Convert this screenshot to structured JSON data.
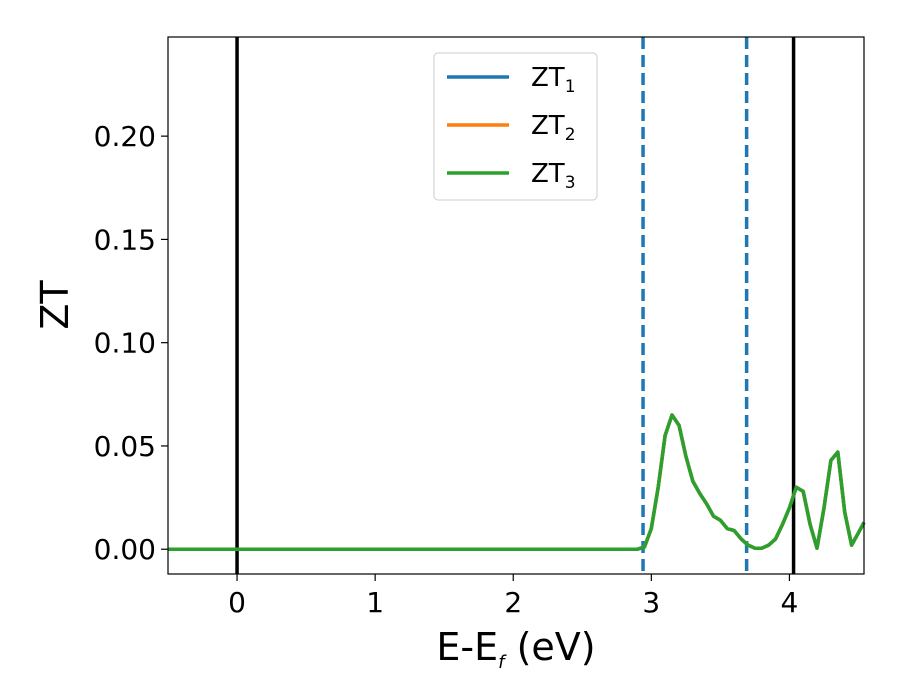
{
  "chart_data": {
    "type": "line",
    "xlabel": {
      "base": "E-E",
      "sub": "f",
      "tail": " (eV)"
    },
    "ylabel": "ZT",
    "xlim": [
      -0.5,
      4.54
    ],
    "ylim": [
      -0.012,
      0.248
    ],
    "xticks": [
      0,
      1,
      2,
      3,
      4
    ],
    "xtick_labels": [
      "0",
      "1",
      "2",
      "3",
      "4"
    ],
    "yticks": [
      0.0,
      0.05,
      0.1,
      0.15,
      0.2
    ],
    "ytick_labels": [
      "0.00",
      "0.05",
      "0.10",
      "0.15",
      "0.20"
    ],
    "legend_position": "upper-center",
    "series": [
      {
        "name": "ZT",
        "sub": "1",
        "color": "#1f77b4",
        "x": [
          -0.5,
          2.9,
          2.95,
          3.0,
          3.05,
          3.1,
          3.15,
          3.2,
          3.25,
          3.3,
          3.35,
          3.4,
          3.45,
          3.5,
          3.55,
          3.6,
          3.65,
          3.7,
          3.75,
          3.8,
          3.85,
          3.9,
          3.95,
          4.0,
          4.05,
          4.1,
          4.15,
          4.2,
          4.25,
          4.3,
          4.35,
          4.4,
          4.45,
          4.5,
          4.54
        ],
        "y": [
          0.0,
          0.0,
          0.001,
          0.01,
          0.03,
          0.055,
          0.065,
          0.06,
          0.045,
          0.033,
          0.027,
          0.022,
          0.016,
          0.014,
          0.01,
          0.009,
          0.005,
          0.002,
          0.0005,
          0.0005,
          0.002,
          0.005,
          0.012,
          0.02,
          0.03,
          0.028,
          0.012,
          0.0005,
          0.02,
          0.043,
          0.047,
          0.018,
          0.002,
          0.008,
          0.013
        ]
      },
      {
        "name": "ZT",
        "sub": "2",
        "color": "#ff7f0e",
        "x": [
          -0.5,
          2.9,
          2.95,
          3.0,
          3.05,
          3.1,
          3.15,
          3.2,
          3.25,
          3.3,
          3.35,
          3.4,
          3.45,
          3.5,
          3.55,
          3.6,
          3.65,
          3.7,
          3.75,
          3.8,
          3.85,
          3.9,
          3.95,
          4.0,
          4.05,
          4.1,
          4.15,
          4.2,
          4.25,
          4.3,
          4.35,
          4.4,
          4.45,
          4.5,
          4.54
        ],
        "y": [
          0.0,
          0.0,
          0.001,
          0.01,
          0.03,
          0.055,
          0.065,
          0.06,
          0.045,
          0.033,
          0.027,
          0.022,
          0.016,
          0.014,
          0.01,
          0.009,
          0.005,
          0.002,
          0.0005,
          0.0005,
          0.002,
          0.005,
          0.012,
          0.02,
          0.03,
          0.028,
          0.012,
          0.0005,
          0.02,
          0.043,
          0.047,
          0.018,
          0.002,
          0.008,
          0.013
        ]
      },
      {
        "name": "ZT",
        "sub": "3",
        "color": "#2ca02c",
        "x": [
          -0.5,
          2.9,
          2.95,
          3.0,
          3.05,
          3.1,
          3.15,
          3.2,
          3.25,
          3.3,
          3.35,
          3.4,
          3.45,
          3.5,
          3.55,
          3.6,
          3.65,
          3.7,
          3.75,
          3.8,
          3.85,
          3.9,
          3.95,
          4.0,
          4.05,
          4.1,
          4.15,
          4.2,
          4.25,
          4.3,
          4.35,
          4.4,
          4.45,
          4.5,
          4.54
        ],
        "y": [
          0.0,
          0.0,
          0.001,
          0.01,
          0.03,
          0.055,
          0.065,
          0.06,
          0.045,
          0.033,
          0.027,
          0.022,
          0.016,
          0.014,
          0.01,
          0.009,
          0.005,
          0.002,
          0.0005,
          0.0005,
          0.002,
          0.005,
          0.012,
          0.02,
          0.03,
          0.028,
          0.012,
          0.0005,
          0.02,
          0.043,
          0.047,
          0.018,
          0.002,
          0.008,
          0.013
        ]
      }
    ],
    "vlines": [
      {
        "x": 0.0,
        "style": "solid",
        "color": "#000000"
      },
      {
        "x": 4.03,
        "style": "solid",
        "color": "#000000"
      },
      {
        "x": 2.94,
        "style": "dashed",
        "color": "#1f77b4"
      },
      {
        "x": 3.69,
        "style": "dashed",
        "color": "#1f77b4"
      }
    ]
  }
}
